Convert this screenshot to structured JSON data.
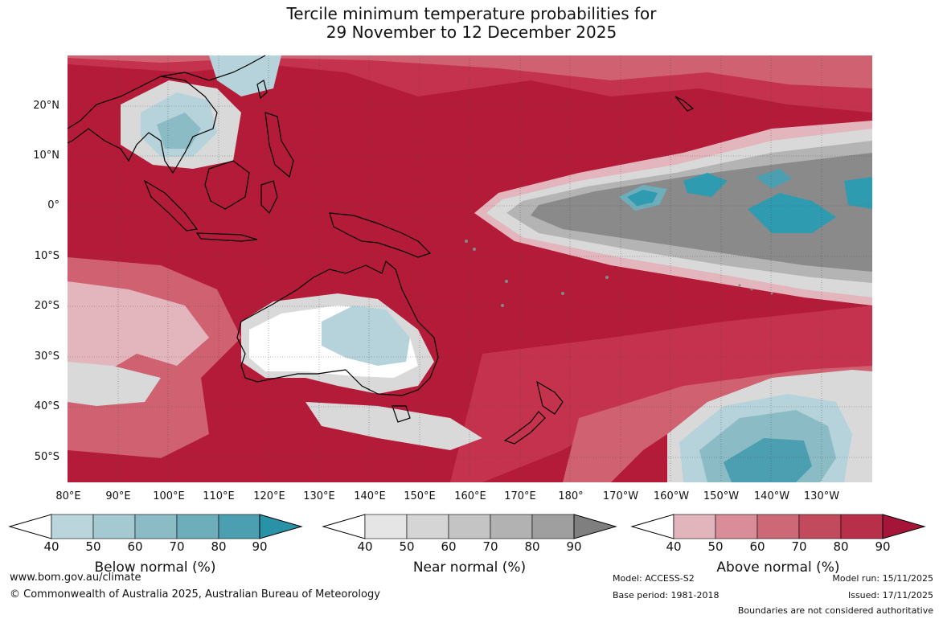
{
  "title": {
    "line1": "Tercile minimum temperature probabilities for",
    "line2": "29 November to 12 December 2025"
  },
  "map": {
    "lat_labels": [
      "20°N",
      "10°N",
      "0°",
      "10°S",
      "20°S",
      "30°S",
      "40°S",
      "50°S"
    ],
    "lon_labels": [
      "80°E",
      "90°E",
      "100°E",
      "110°E",
      "120°E",
      "130°E",
      "140°E",
      "150°E",
      "160°E",
      "170°E",
      "180°",
      "170°W",
      "160°W",
      "150°W",
      "140°W",
      "130°W"
    ],
    "colors": {
      "above_90": "#b31b38",
      "above_80": "#c5324d",
      "above_70": "#cf6171",
      "above_60": "#d98a96",
      "above_50": "#e3b5bd",
      "near": "#d9d9d9",
      "near_dark": "#8a8a8a",
      "below_light": "#b6d3db",
      "below_dark": "#2e9bb0",
      "land_outline": "#000000"
    }
  },
  "colorbars": [
    {
      "name": "Below normal (%)",
      "ticks": [
        "40",
        "50",
        "60",
        "70",
        "80",
        "90"
      ],
      "colors": [
        "#ffffff",
        "#bad5dc",
        "#a4c9d1",
        "#8bbcc6",
        "#6eaebb",
        "#4b9fb0",
        "#2a92a6"
      ]
    },
    {
      "name": "Near normal (%)",
      "ticks": [
        "40",
        "50",
        "60",
        "70",
        "80",
        "90"
      ],
      "colors": [
        "#ffffff",
        "#e5e5e5",
        "#d5d5d5",
        "#c4c4c4",
        "#b2b2b2",
        "#9f9f9f",
        "#7f7f7f"
      ]
    },
    {
      "name": "Above normal (%)",
      "ticks": [
        "40",
        "50",
        "60",
        "70",
        "80",
        "90"
      ],
      "colors": [
        "#ffffff",
        "#e2b4bc",
        "#d88d99",
        "#cd6876",
        "#c24a5d",
        "#b72f48",
        "#a5153a"
      ]
    }
  ],
  "footer": {
    "website": "www.bom.gov.au/climate",
    "copyright": "© Commonwealth of Australia 2025, Australian Bureau of Meteorology",
    "model": "Model: ACCESS-S2",
    "base_period": "Base period: 1981-2018",
    "model_run": "Model run: 15/11/2025",
    "issued": "Issued: 17/11/2025",
    "disclaimer": "Boundaries are not considered authoritative"
  }
}
